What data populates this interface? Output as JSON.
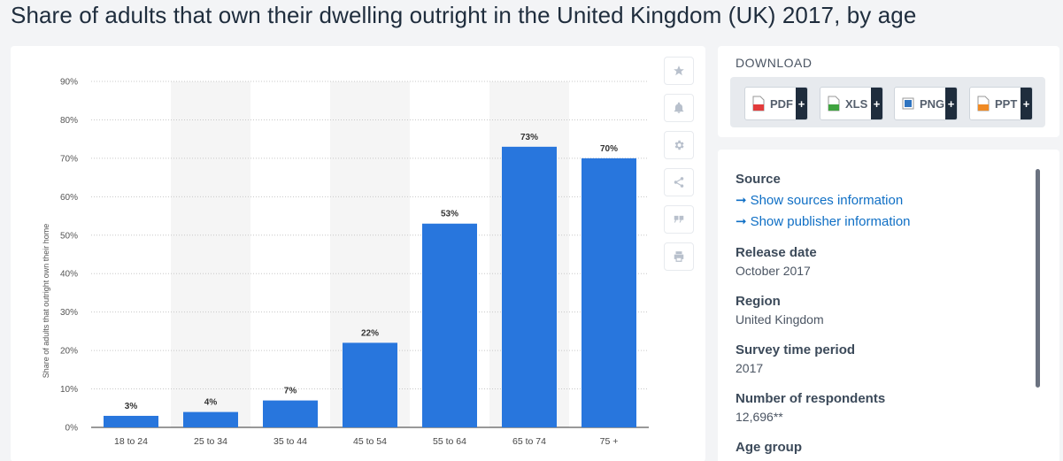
{
  "page": {
    "title": "Share of adults that own their dwelling outright in the United Kingdom (UK) 2017, by age"
  },
  "toolbar": {
    "icons": [
      "star-icon",
      "bell-icon",
      "gear-icon",
      "share-icon",
      "quote-icon",
      "print-icon"
    ]
  },
  "download": {
    "title": "DOWNLOAD",
    "buttons": [
      {
        "label": "PDF",
        "icon": "pdf-file-icon",
        "color": "#e23b3b"
      },
      {
        "label": "XLS",
        "icon": "xls-file-icon",
        "color": "#3fa33f"
      },
      {
        "label": "PNG",
        "icon": "png-file-icon",
        "color": "#2f74c0"
      },
      {
        "label": "PPT",
        "icon": "ppt-file-icon",
        "color": "#f08a24"
      }
    ],
    "plus": "+"
  },
  "info": {
    "source_heading": "Source",
    "source_link_1": "Show sources information",
    "source_link_2": "Show publisher information",
    "release_heading": "Release date",
    "release_value": "October 2017",
    "region_heading": "Region",
    "region_value": "United Kingdom",
    "survey_heading": "Survey time period",
    "survey_value": "2017",
    "respondents_heading": "Number of respondents",
    "respondents_value": "12,696**",
    "age_heading": "Age group",
    "arrow": "➞"
  },
  "chart_data": {
    "type": "bar",
    "title": "",
    "xlabel": "",
    "ylabel": "Share of adults that outright own their home",
    "categories": [
      "18 to 24",
      "25 to 34",
      "35 to 44",
      "45 to 54",
      "55 to 64",
      "65 to 74",
      "75 +"
    ],
    "values": [
      3,
      4,
      7,
      22,
      53,
      73,
      70
    ],
    "value_labels": [
      "3%",
      "4%",
      "7%",
      "22%",
      "53%",
      "73%",
      "70%"
    ],
    "y_ticks": [
      "0%",
      "10%",
      "20%",
      "30%",
      "40%",
      "50%",
      "60%",
      "70%",
      "80%",
      "90%"
    ],
    "ylim": [
      0,
      90
    ],
    "grid": true,
    "colors": {
      "bar": "#2876dd",
      "band": "#f5f5f5",
      "grid": "#c8c8c8",
      "text": "#333333"
    }
  }
}
